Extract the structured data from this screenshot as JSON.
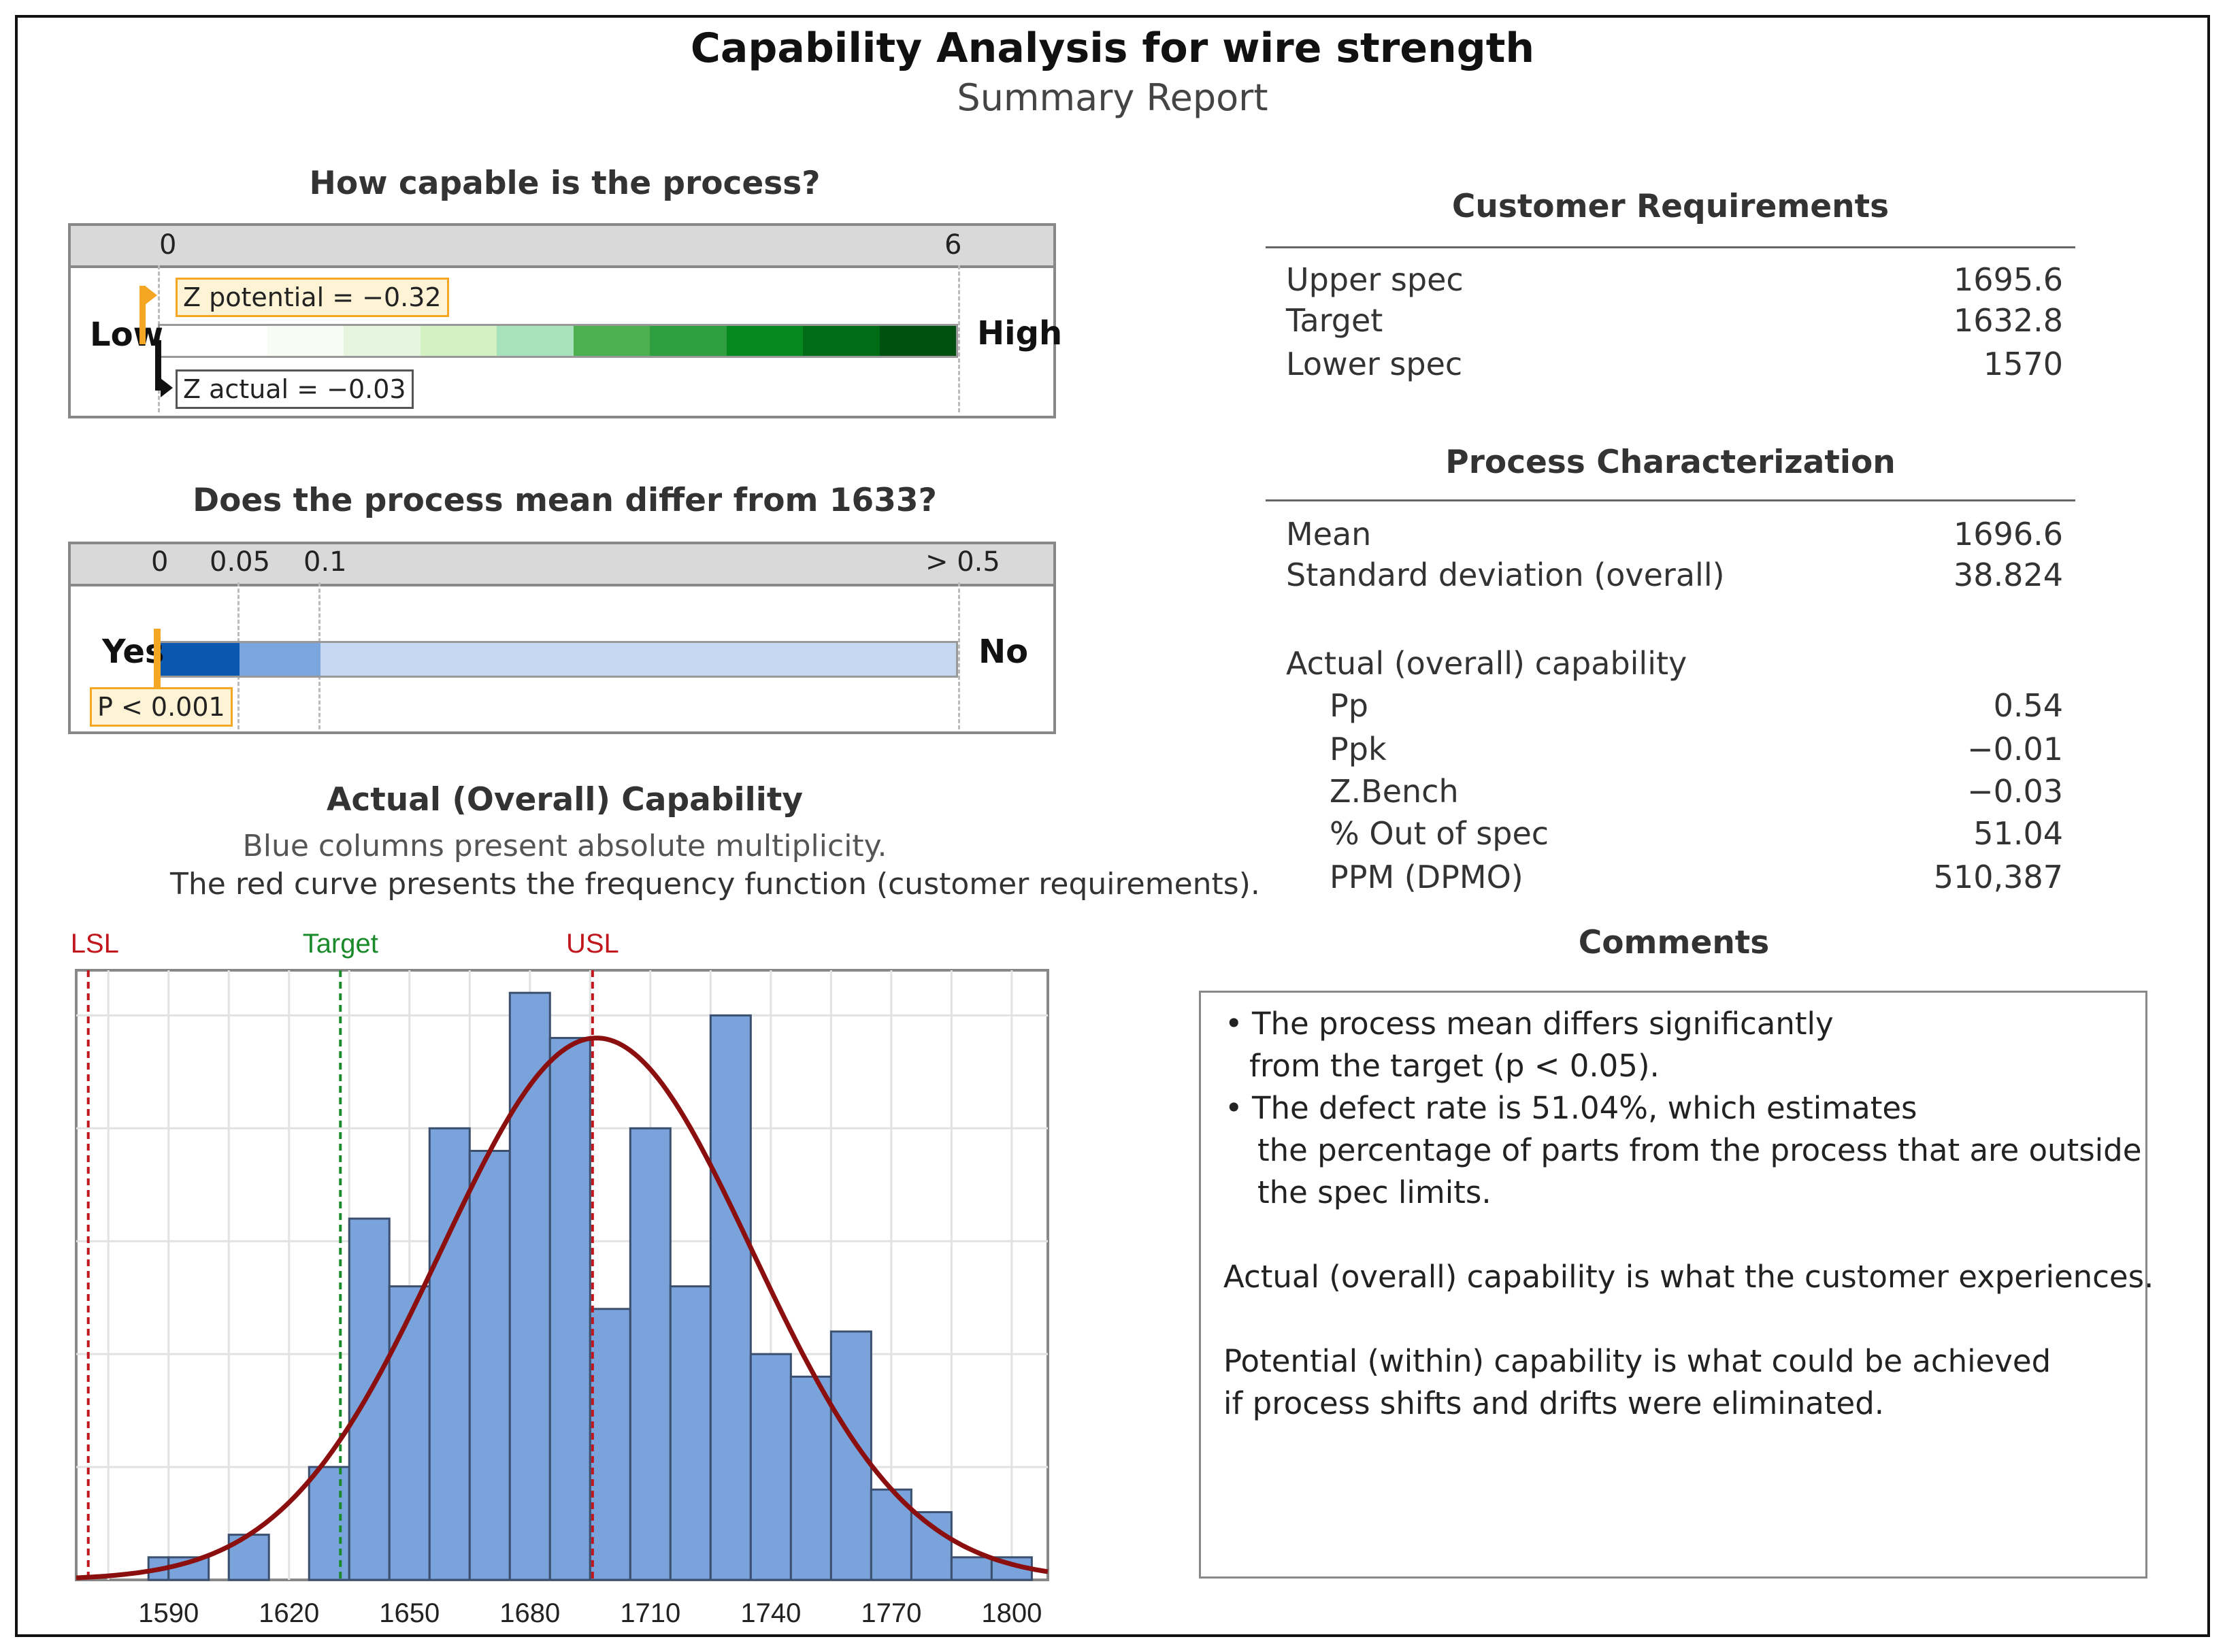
{
  "title": "Capability Analysis for wire strength",
  "subtitle": "Summary Report",
  "capable": {
    "heading": "How capable is the process?",
    "tick_min": "0",
    "tick_max": "6",
    "low_label": "Low",
    "high_label": "High",
    "z_potential_label": "Z potential = −0.32",
    "z_actual_label": "Z actual = −0.03",
    "z_potential": -0.32,
    "z_actual": -0.03,
    "scale_min": 0,
    "scale_max": 6,
    "accent": "#f5a623",
    "segment_colors": [
      "#f7fcf5",
      "#e5f5e0",
      "#d4f1c4",
      "#a8e2bd",
      "#4caf50",
      "#2e9e3e",
      "#068a1f",
      "#006d16",
      "#00500f"
    ]
  },
  "mean_test": {
    "heading": "Does the process mean differ from 1633?",
    "ticks": [
      "0",
      "0.05",
      "0.1",
      "> 0.5"
    ],
    "yes_label": "Yes",
    "no_label": "No",
    "p_label": "P < 0.001",
    "colors": [
      "#0a57b0",
      "#7aa6dd",
      "#c5d7f1"
    ]
  },
  "histogram": {
    "heading": "Actual (Overall) Capability",
    "desc1": "Blue columns present absolute multiplicity.",
    "desc2": "The red curve presents the frequency function (customer requirements).",
    "lsl_label": "LSL",
    "target_label": "Target",
    "usl_label": "USL",
    "bar_color": "#7ba3db",
    "curve_color": "#8b0f0f",
    "lsl_color": "#c0161c",
    "target_color": "#1a8a2a",
    "usl_color": "#c0161c"
  },
  "chart_data": {
    "type": "bar",
    "bin_width": 5,
    "x_ticks": [
      1590,
      1620,
      1650,
      1680,
      1710,
      1740,
      1770,
      1800
    ],
    "xlim": [
      1567,
      1809
    ],
    "bins": [
      {
        "x": 1585,
        "count": 1
      },
      {
        "x": 1590,
        "count": 1
      },
      {
        "x": 1605,
        "count": 2
      },
      {
        "x": 1625,
        "count": 5
      },
      {
        "x": 1635,
        "count": 16
      },
      {
        "x": 1645,
        "count": 13
      },
      {
        "x": 1655,
        "count": 20
      },
      {
        "x": 1665,
        "count": 19
      },
      {
        "x": 1675,
        "count": 26
      },
      {
        "x": 1685,
        "count": 24
      },
      {
        "x": 1695,
        "count": 12
      },
      {
        "x": 1705,
        "count": 20
      },
      {
        "x": 1715,
        "count": 13
      },
      {
        "x": 1725,
        "count": 25
      },
      {
        "x": 1735,
        "count": 10
      },
      {
        "x": 1745,
        "count": 9
      },
      {
        "x": 1755,
        "count": 11
      },
      {
        "x": 1765,
        "count": 4
      },
      {
        "x": 1775,
        "count": 3
      },
      {
        "x": 1785,
        "count": 1
      },
      {
        "x": 1795,
        "count": 1
      }
    ],
    "ylim": [
      0,
      27
    ],
    "curve": {
      "mean": 1696.6,
      "sd": 38.824,
      "peak": 24
    },
    "lsl": 1570,
    "target": 1632.8,
    "usl": 1695.6,
    "grid": true
  },
  "customer": {
    "heading": "Customer Requirements",
    "rows": [
      {
        "label": "Upper spec",
        "value": "1695.6"
      },
      {
        "label": "Target",
        "value": "1632.8"
      },
      {
        "label": "Lower spec",
        "value": "1570"
      }
    ]
  },
  "process": {
    "heading": "Process Characterization",
    "rows": [
      {
        "label": "Mean",
        "value": "1696.6"
      },
      {
        "label": "Standard deviation (overall)",
        "value": "38.824"
      }
    ],
    "actual_heading": "Actual (overall) capability",
    "actual_rows": [
      {
        "label": "Pp",
        "value": "0.54"
      },
      {
        "label": "Ppk",
        "value": "−0.01"
      },
      {
        "label": "Z.Bench",
        "value": "−0.03"
      },
      {
        "label": "% Out of spec",
        "value": "51.04"
      },
      {
        "label": "PPM (DPMO)",
        "value": "510,387"
      }
    ]
  },
  "comments": {
    "heading": "Comments",
    "b1a": "The process mean differs significantly",
    "b1b": "from the target (p < 0.05).",
    "b2a": "The defect rate is 51.04%, which estimates",
    "b2b": "the percentage of parts from the process that are outside",
    "b2c": "the spec limits.",
    "p1": "Actual (overall) capability is what the customer experiences.",
    "p2a": "Potential (within) capability is what could be achieved",
    "p2b": "if process shifts and drifts were eliminated.",
    "bullet": "•"
  }
}
